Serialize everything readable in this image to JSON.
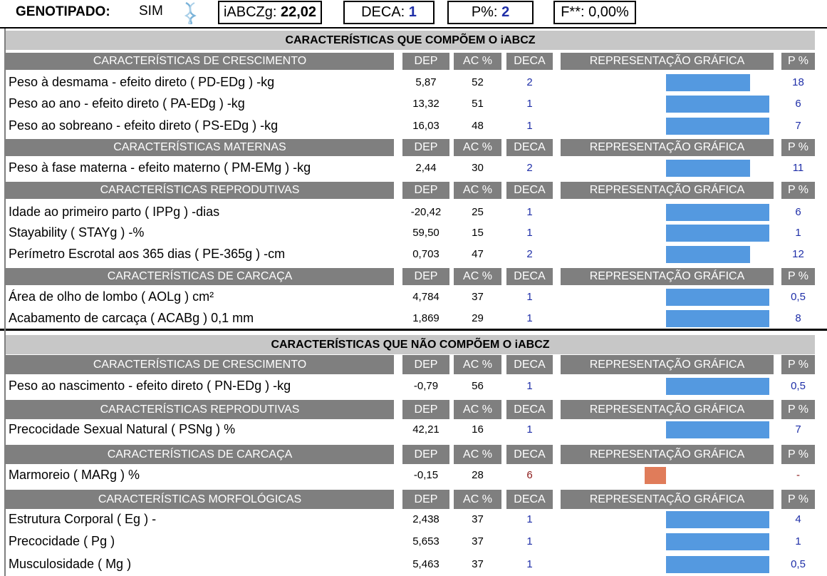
{
  "header": {
    "genotipado_label": "GENOTIPADO:",
    "genotipado_value": "SIM",
    "iabczg_label": "iABCZg:",
    "iabczg_value": "22,02",
    "deca_label": "DECA:",
    "deca_value": "1",
    "p_label": "P%:",
    "p_value": "2",
    "f_label": "F**:",
    "f_value": "0,00%"
  },
  "columns": {
    "dep": "DEP",
    "ac": "AC %",
    "deca": "DECA",
    "rep": "REPRESENTAÇÃO GRÁFICA",
    "p": "P %"
  },
  "colors": {
    "bar_blue": "#5499e0",
    "bar_orange": "#e07c5a",
    "deca_blue": "#1f2fa8",
    "deca_red": "#8b1a1a",
    "group_header_bg": "#7f7f7f",
    "section_header_bg": "#c7c7c7"
  },
  "sections": [
    {
      "title": "CARACTERÍSTICAS QUE COMPÕEM O iABCZ",
      "groups": [
        {
          "title": "CARACTERÍSTICAS DE CRESCIMENTO",
          "rows": [
            {
              "label": "Peso à desmama - efeito direto ( PD-EDg ) -kg",
              "dep": "5,87",
              "ac": "52",
              "deca": "2",
              "p": "18",
              "bar_pct": 80
            },
            {
              "label": "Peso ao ano - efeito direto ( PA-EDg ) -kg",
              "dep": "13,32",
              "ac": "51",
              "deca": "1",
              "p": "6",
              "bar_pct": 98
            },
            {
              "label": "Peso ao sobreano - efeito direto ( PS-EDg ) -kg",
              "dep": "16,03",
              "ac": "48",
              "deca": "1",
              "p": "7",
              "bar_pct": 98
            }
          ]
        },
        {
          "title": "CARACTERÍSTICAS MATERNAS",
          "rows": [
            {
              "label": "Peso à fase materna - efeito materno ( PM-EMg ) -kg",
              "dep": "2,44",
              "ac": "30",
              "deca": "2",
              "p": "11",
              "bar_pct": 80
            }
          ]
        },
        {
          "title": "CARACTERÍSTICAS REPRODUTIVAS",
          "rows": [
            {
              "label": "Idade ao primeiro parto ( IPPg ) -dias",
              "dep": "-20,42",
              "ac": "25",
              "deca": "1",
              "p": "6",
              "bar_pct": 98
            },
            {
              "label": "Stayability ( STAYg ) -%",
              "dep": "59,50",
              "ac": "15",
              "deca": "1",
              "p": "1",
              "bar_pct": 98
            },
            {
              "label": "Perímetro Escrotal aos 365 dias ( PE-365g ) -cm",
              "dep": "0,703",
              "ac": "47",
              "deca": "2",
              "p": "12",
              "bar_pct": 80
            }
          ]
        },
        {
          "title": "CARACTERÍSTICAS DE CARCAÇA",
          "rows": [
            {
              "label": "Área de olho de lombo ( AOLg ) cm²",
              "dep": "4,784",
              "ac": "37",
              "deca": "1",
              "p": "0,5",
              "bar_pct": 98
            },
            {
              "label": "Acabamento de carcaça ( ACABg ) 0,1 mm",
              "dep": "1,869",
              "ac": "29",
              "deca": "1",
              "p": "8",
              "bar_pct": 98
            }
          ]
        }
      ]
    },
    {
      "title": "CARACTERÍSTICAS QUE NÃO COMPÕEM O iABCZ",
      "groups": [
        {
          "title": "CARACTERÍSTICAS DE CRESCIMENTO",
          "rows": [
            {
              "label": "Peso ao nascimento - efeito direto ( PN-EDg ) -kg",
              "dep": "-0,79",
              "ac": "56",
              "deca": "1",
              "p": "0,5",
              "bar_pct": 98
            }
          ]
        },
        {
          "title": "CARACTERÍSTICAS REPRODUTIVAS",
          "rows": [
            {
              "label": "Precocidade Sexual Natural ( PSNg ) %",
              "dep": "42,21",
              "ac": "16",
              "deca": "1",
              "p": "7",
              "bar_pct": 98
            }
          ]
        },
        {
          "title": "CARACTERÍSTICAS DE CARCAÇA",
          "rows": [
            {
              "label": "Marmoreio ( MARg ) %",
              "dep": "-0,15",
              "ac": "28",
              "deca": "6",
              "p": "-",
              "bar_pct": 20,
              "negative": true
            }
          ]
        },
        {
          "title": "CARACTERÍSTICAS MORFOLÓGICAS",
          "rows": [
            {
              "label": "Estrutura Corporal ( Eg ) -",
              "dep": "2,438",
              "ac": "37",
              "deca": "1",
              "p": "4",
              "bar_pct": 98
            },
            {
              "label": "Precocidade ( Pg )",
              "dep": "5,653",
              "ac": "37",
              "deca": "1",
              "p": "1",
              "bar_pct": 98
            },
            {
              "label": "Musculosidade ( Mg )",
              "dep": "5,463",
              "ac": "37",
              "deca": "1",
              "p": "0,5",
              "bar_pct": 98
            }
          ]
        }
      ]
    }
  ]
}
